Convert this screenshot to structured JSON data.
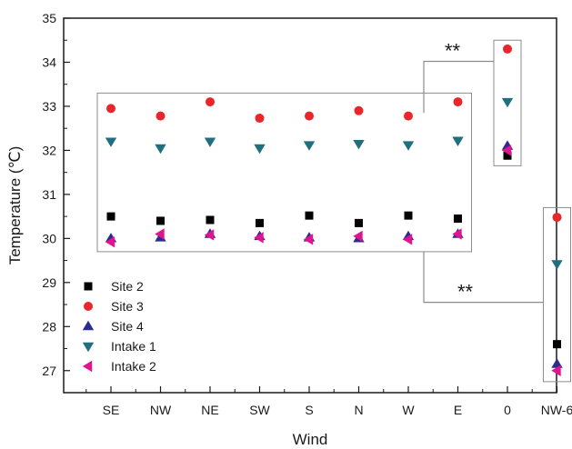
{
  "chart_data": {
    "type": "scatter",
    "title": "",
    "xlabel": "Wind",
    "ylabel": "Temperature (℃)",
    "categories": [
      "SE",
      "NW",
      "NE",
      "SW",
      "S",
      "N",
      "W",
      "E",
      "0",
      "NW-6"
    ],
    "ylim": [
      26.5,
      35
    ],
    "yticks": [
      27,
      28,
      29,
      30,
      31,
      32,
      33,
      34,
      35
    ],
    "grid": false,
    "legend_position": "bottom-left",
    "series": [
      {
        "name": "Site 2",
        "marker": "square",
        "color": "#000000",
        "values": [
          30.5,
          30.4,
          30.42,
          30.35,
          30.52,
          30.35,
          30.52,
          30.45,
          31.88,
          27.6
        ]
      },
      {
        "name": "Site 3",
        "marker": "circle",
        "color": "#e8262b",
        "values": [
          32.95,
          32.78,
          33.1,
          32.73,
          32.78,
          32.9,
          32.78,
          33.1,
          34.3,
          30.48
        ]
      },
      {
        "name": "Site 4",
        "marker": "triangle-up",
        "color": "#2b2b91",
        "values": [
          30.0,
          30.02,
          30.1,
          30.05,
          30.02,
          30.0,
          30.05,
          30.1,
          32.1,
          27.15
        ]
      },
      {
        "name": "Intake 1",
        "marker": "triangle-down",
        "color": "#1f6f7f",
        "values": [
          32.2,
          32.05,
          32.2,
          32.05,
          32.12,
          32.15,
          32.12,
          32.22,
          33.1,
          29.42
        ]
      },
      {
        "name": "Intake 2",
        "marker": "triangle-left",
        "color": "#e0148f",
        "values": [
          29.92,
          30.1,
          30.08,
          30.02,
          29.98,
          30.05,
          29.98,
          30.1,
          32.0,
          27.0
        ]
      }
    ],
    "annotations": [
      {
        "text": "**"
      },
      {
        "text": "**"
      }
    ]
  }
}
